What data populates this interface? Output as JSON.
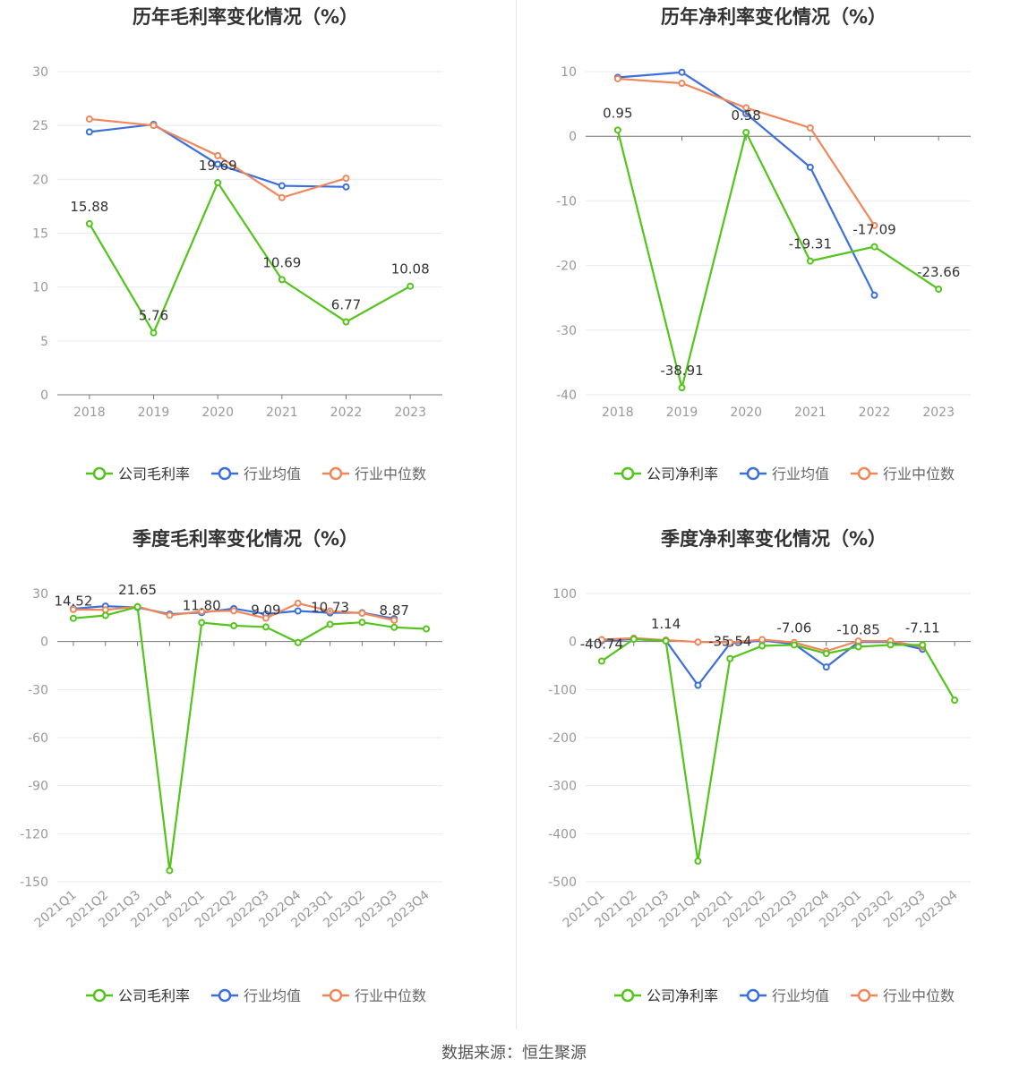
{
  "source_text": "数据来源：恒生聚源",
  "colors": {
    "company": "#52c41a",
    "avg": "#3a6fdc",
    "median": "#f0875a",
    "grid": "#e8eaf2",
    "axis": "#999999"
  },
  "chart_data": [
    {
      "type": "line",
      "title": "历年毛利率变化情况（%）",
      "categories": [
        "2018",
        "2019",
        "2020",
        "2021",
        "2022",
        "2023"
      ],
      "ylim": [
        0,
        30
      ],
      "yticks": [
        0,
        5,
        10,
        15,
        20,
        25,
        30
      ],
      "grid": true,
      "legend": "bottom",
      "series": [
        {
          "name": "公司毛利率",
          "key": "company",
          "values": [
            15.88,
            5.76,
            19.69,
            10.69,
            6.77,
            10.08
          ],
          "labels": [
            "15.88",
            "5.76",
            "19.69",
            "10.69",
            "6.77",
            "10.08"
          ]
        },
        {
          "name": "行业均值",
          "key": "avg",
          "values": [
            24.4,
            25.1,
            21.4,
            19.4,
            19.3,
            null
          ]
        },
        {
          "name": "行业中位数",
          "key": "median",
          "values": [
            25.6,
            25.0,
            22.2,
            18.3,
            20.1,
            null
          ]
        }
      ]
    },
    {
      "type": "line",
      "title": "历年净利率变化情况（%）",
      "categories": [
        "2018",
        "2019",
        "2020",
        "2021",
        "2022",
        "2023"
      ],
      "ylim": [
        -40,
        10
      ],
      "yticks": [
        -40,
        -30,
        -20,
        -10,
        0,
        10
      ],
      "grid": true,
      "legend": "bottom",
      "series": [
        {
          "name": "公司净利率",
          "key": "company",
          "values": [
            0.95,
            -38.91,
            0.58,
            -19.31,
            -17.09,
            -23.66
          ],
          "labels": [
            "0.95",
            "-38.91",
            "0.58",
            "-19.31",
            "-17.09",
            "-23.66"
          ]
        },
        {
          "name": "行业均值",
          "key": "avg",
          "values": [
            9.1,
            9.9,
            3.5,
            -4.8,
            -24.6,
            null
          ]
        },
        {
          "name": "行业中位数",
          "key": "median",
          "values": [
            8.9,
            8.2,
            4.4,
            1.3,
            -13.8,
            null
          ]
        }
      ]
    },
    {
      "type": "line",
      "title": "季度毛利率变化情况（%）",
      "categories": [
        "2021Q1",
        "2021Q2",
        "2021Q3",
        "2021Q4",
        "2022Q1",
        "2022Q2",
        "2022Q3",
        "2022Q4",
        "2023Q1",
        "2023Q2",
        "2023Q3",
        "2023Q4"
      ],
      "ylim": [
        -150,
        30
      ],
      "yticks": [
        -150,
        -120,
        -90,
        -60,
        -30,
        0,
        30
      ],
      "grid": true,
      "legend": "bottom",
      "series": [
        {
          "name": "公司毛利率",
          "key": "company",
          "values": [
            14.52,
            16.3,
            21.65,
            -143.0,
            11.8,
            9.9,
            9.09,
            -0.6,
            10.73,
            12.0,
            8.87,
            7.9
          ],
          "labels": [
            "14.52",
            "",
            "21.65",
            "",
            "11.80",
            "",
            "9.09",
            "",
            "10.73",
            "",
            "8.87",
            ""
          ]
        },
        {
          "name": "行业均值",
          "key": "avg",
          "values": [
            20.5,
            22.1,
            21.3,
            17.1,
            18.1,
            20.6,
            17.2,
            19.1,
            17.9,
            18.0,
            14.3,
            null
          ]
        },
        {
          "name": "行业中位数",
          "key": "median",
          "values": [
            20.0,
            19.8,
            21.8,
            16.4,
            18.8,
            19.2,
            14.6,
            23.9,
            19.0,
            17.7,
            13.3,
            null
          ]
        }
      ]
    },
    {
      "type": "line",
      "title": "季度净利率变化情况（%）",
      "categories": [
        "2021Q1",
        "2021Q2",
        "2021Q3",
        "2021Q4",
        "2022Q1",
        "2022Q2",
        "2022Q3",
        "2022Q4",
        "2023Q1",
        "2023Q2",
        "2023Q3",
        "2023Q4"
      ],
      "ylim": [
        -500,
        100
      ],
      "yticks": [
        -500,
        -400,
        -300,
        -200,
        -100,
        0,
        100
      ],
      "grid": true,
      "legend": "bottom",
      "series": [
        {
          "name": "公司净利率",
          "key": "company",
          "values": [
            -40.74,
            5.0,
            1.14,
            -457.0,
            -35.54,
            -9.0,
            -7.06,
            -25.0,
            -10.85,
            -7.0,
            -7.11,
            -122.0
          ],
          "labels": [
            "-40.74",
            "",
            "1.14",
            "",
            "-35.54",
            "",
            "-7.06",
            "",
            "-10.85",
            "",
            "-7.11",
            ""
          ]
        },
        {
          "name": "行业均值",
          "key": "avg",
          "values": [
            2.0,
            5.0,
            2.0,
            -91.0,
            -4.0,
            2.0,
            -5.0,
            -53.0,
            -1.0,
            -1.0,
            -16.0,
            null
          ]
        },
        {
          "name": "行业中位数",
          "key": "median",
          "values": [
            4.0,
            7.0,
            3.0,
            -1.0,
            -2.0,
            4.0,
            -2.0,
            -20.0,
            1.0,
            1.0,
            -11.0,
            null
          ]
        }
      ]
    }
  ]
}
